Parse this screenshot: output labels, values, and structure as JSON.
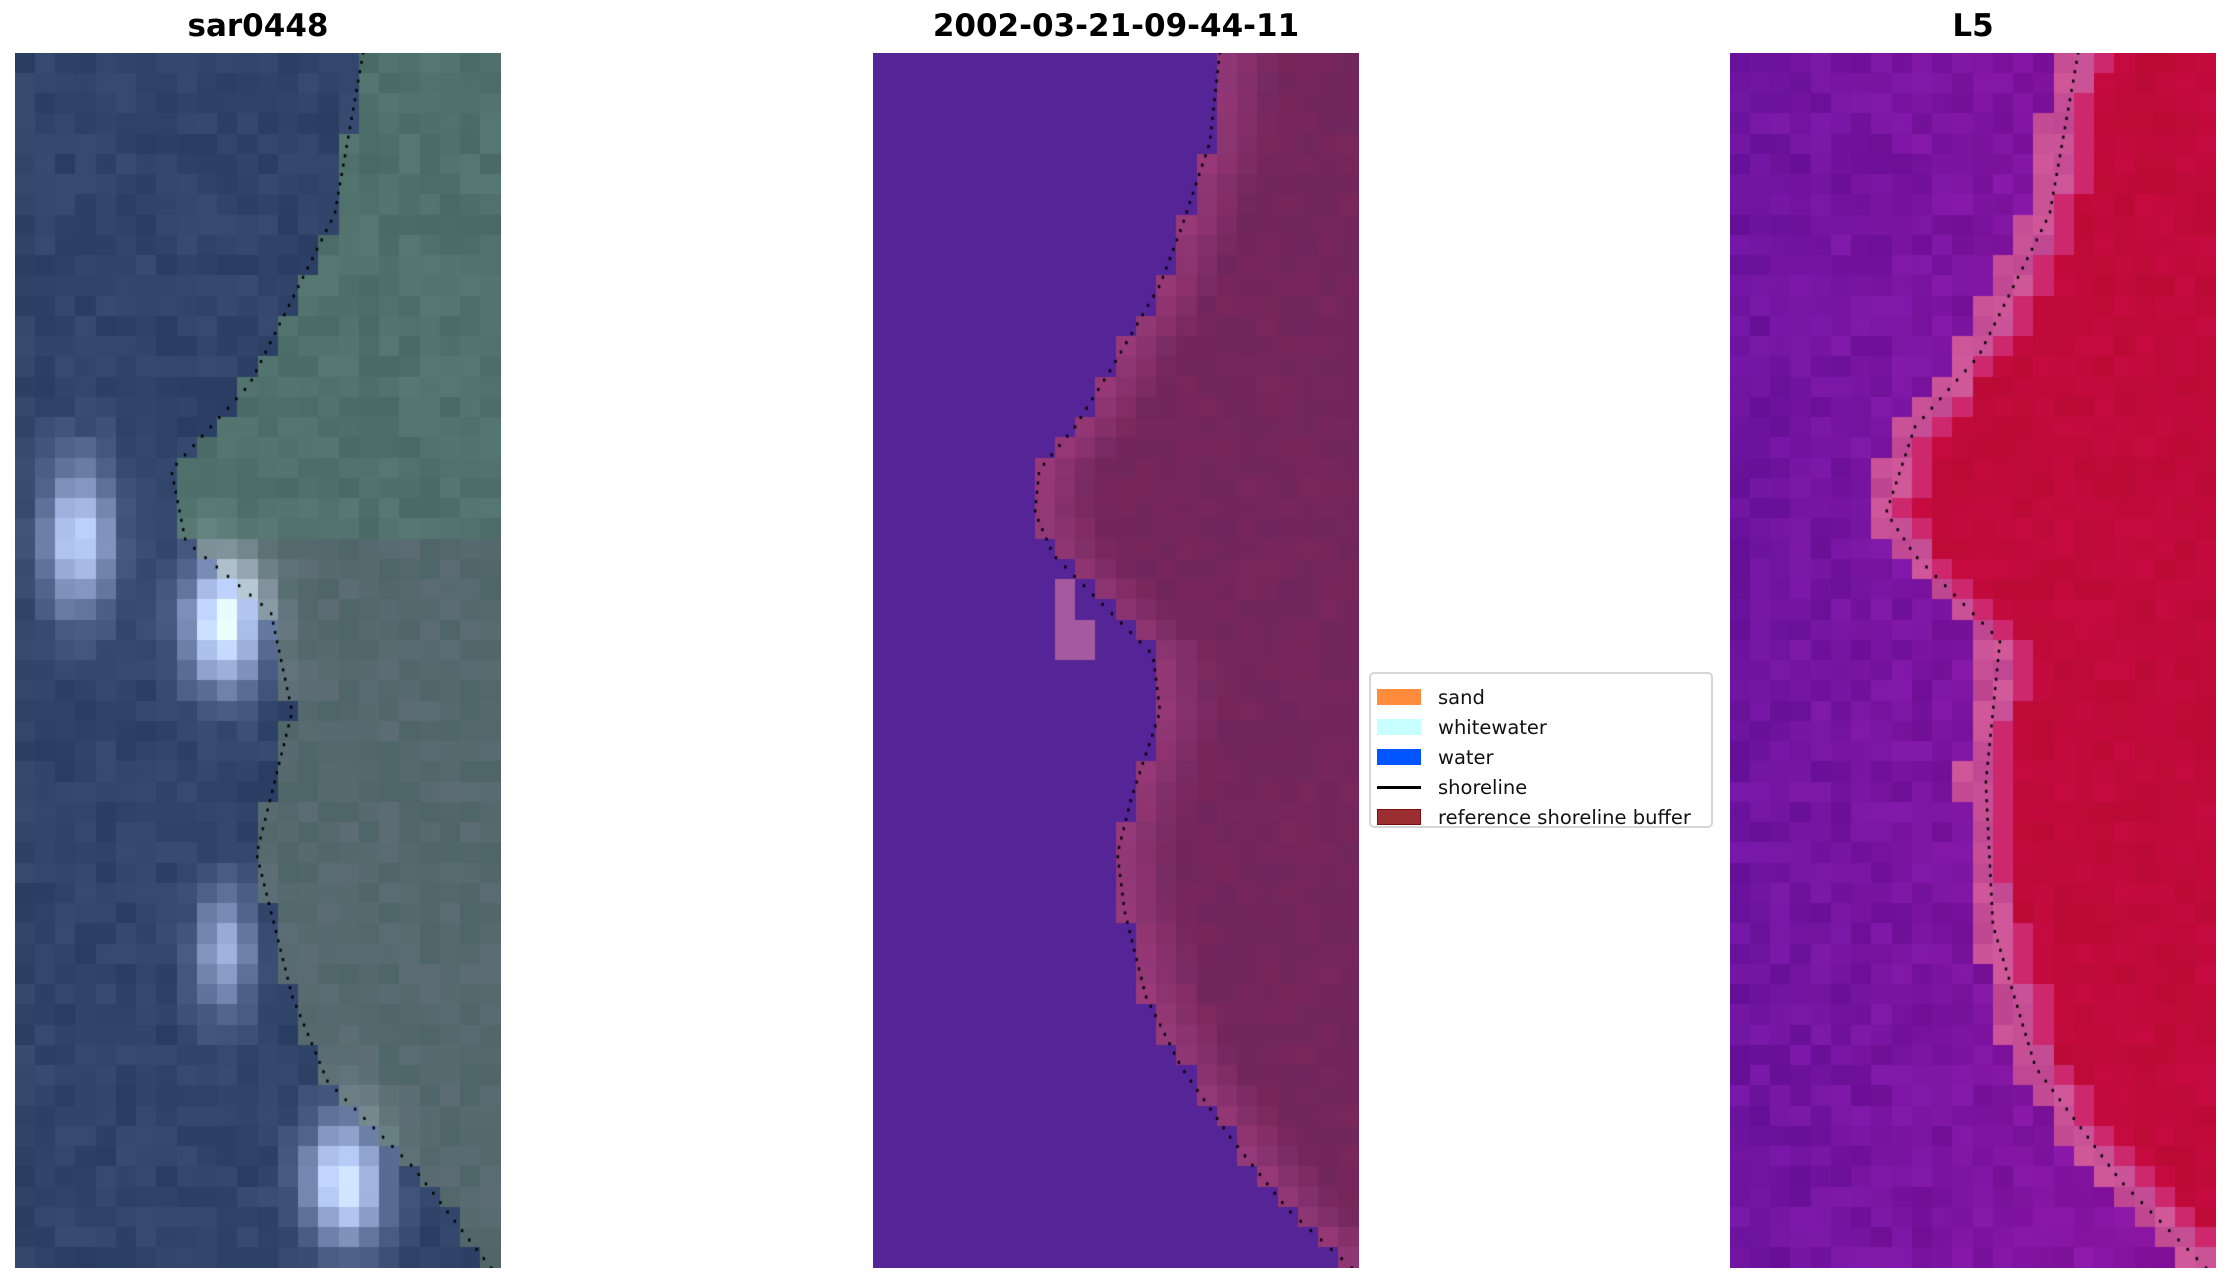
{
  "panels": [
    {
      "title": "sar0448",
      "kind": "rgb-image"
    },
    {
      "title": "2002-03-21-09-44-11",
      "kind": "classified-image"
    },
    {
      "title": "L5",
      "kind": "index-image"
    }
  ],
  "legend": {
    "items": [
      {
        "label": "sand",
        "type": "patch",
        "color": "#ff8c3c"
      },
      {
        "label": "whitewater",
        "type": "patch",
        "color": "#c8ffff"
      },
      {
        "label": "water",
        "type": "patch",
        "color": "#0055ff"
      },
      {
        "label": "shoreline",
        "type": "line",
        "color": "#000000"
      },
      {
        "label": "reference shoreline buffer",
        "type": "patch",
        "color": "#9a2e30"
      }
    ]
  }
}
